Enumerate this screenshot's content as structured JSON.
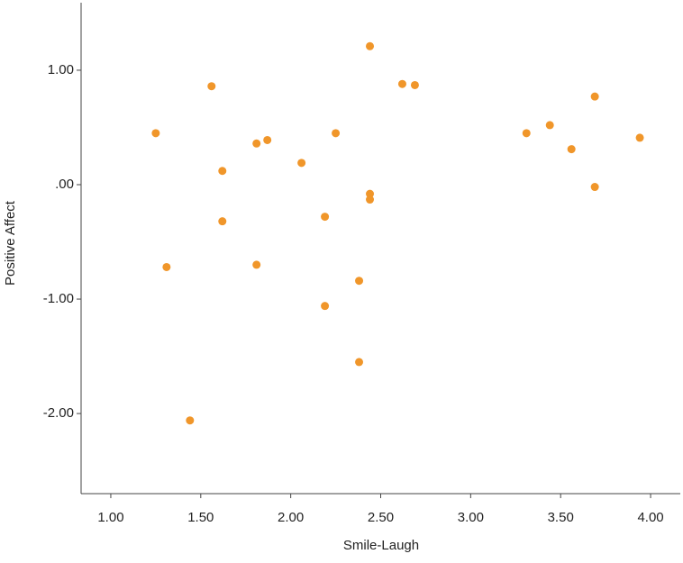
{
  "chart_data": {
    "type": "scatter",
    "x_label": "Smile-Laugh",
    "y_label": "Positive Affect",
    "color": "#f0962a",
    "x": [
      1.25,
      1.31,
      1.44,
      1.56,
      1.62,
      1.62,
      1.81,
      1.81,
      1.87,
      2.06,
      2.19,
      2.19,
      2.25,
      2.38,
      2.38,
      2.44,
      2.44,
      2.44,
      2.62,
      2.69,
      3.31,
      3.44,
      3.56,
      3.69,
      3.69,
      3.94
    ],
    "values": [
      0.45,
      -0.72,
      -2.06,
      0.86,
      0.12,
      -0.32,
      0.36,
      -0.7,
      0.39,
      0.19,
      -0.28,
      -1.06,
      0.45,
      -0.84,
      -1.55,
      1.21,
      -0.08,
      -0.13,
      0.88,
      0.87,
      0.45,
      0.52,
      0.31,
      0.77,
      -0.02,
      0.41
    ],
    "xlim": [
      0.835,
      4.165
    ],
    "ylim": [
      -2.7,
      1.59
    ],
    "xticks": [
      {
        "value": 1,
        "label": "1.00"
      },
      {
        "value": 1.5,
        "label": "1.50"
      },
      {
        "value": 2,
        "label": "2.00"
      },
      {
        "value": 2.5,
        "label": "2.50"
      },
      {
        "value": 3,
        "label": "3.00"
      },
      {
        "value": 3.5,
        "label": "3.50"
      },
      {
        "value": 4,
        "label": "4.00"
      }
    ],
    "yticks": [
      {
        "value": -2,
        "label": "-2.00"
      },
      {
        "value": -1,
        "label": "-1.00"
      },
      {
        "value": 0,
        "label": ".00"
      },
      {
        "value": 1,
        "label": "1.00"
      }
    ]
  }
}
